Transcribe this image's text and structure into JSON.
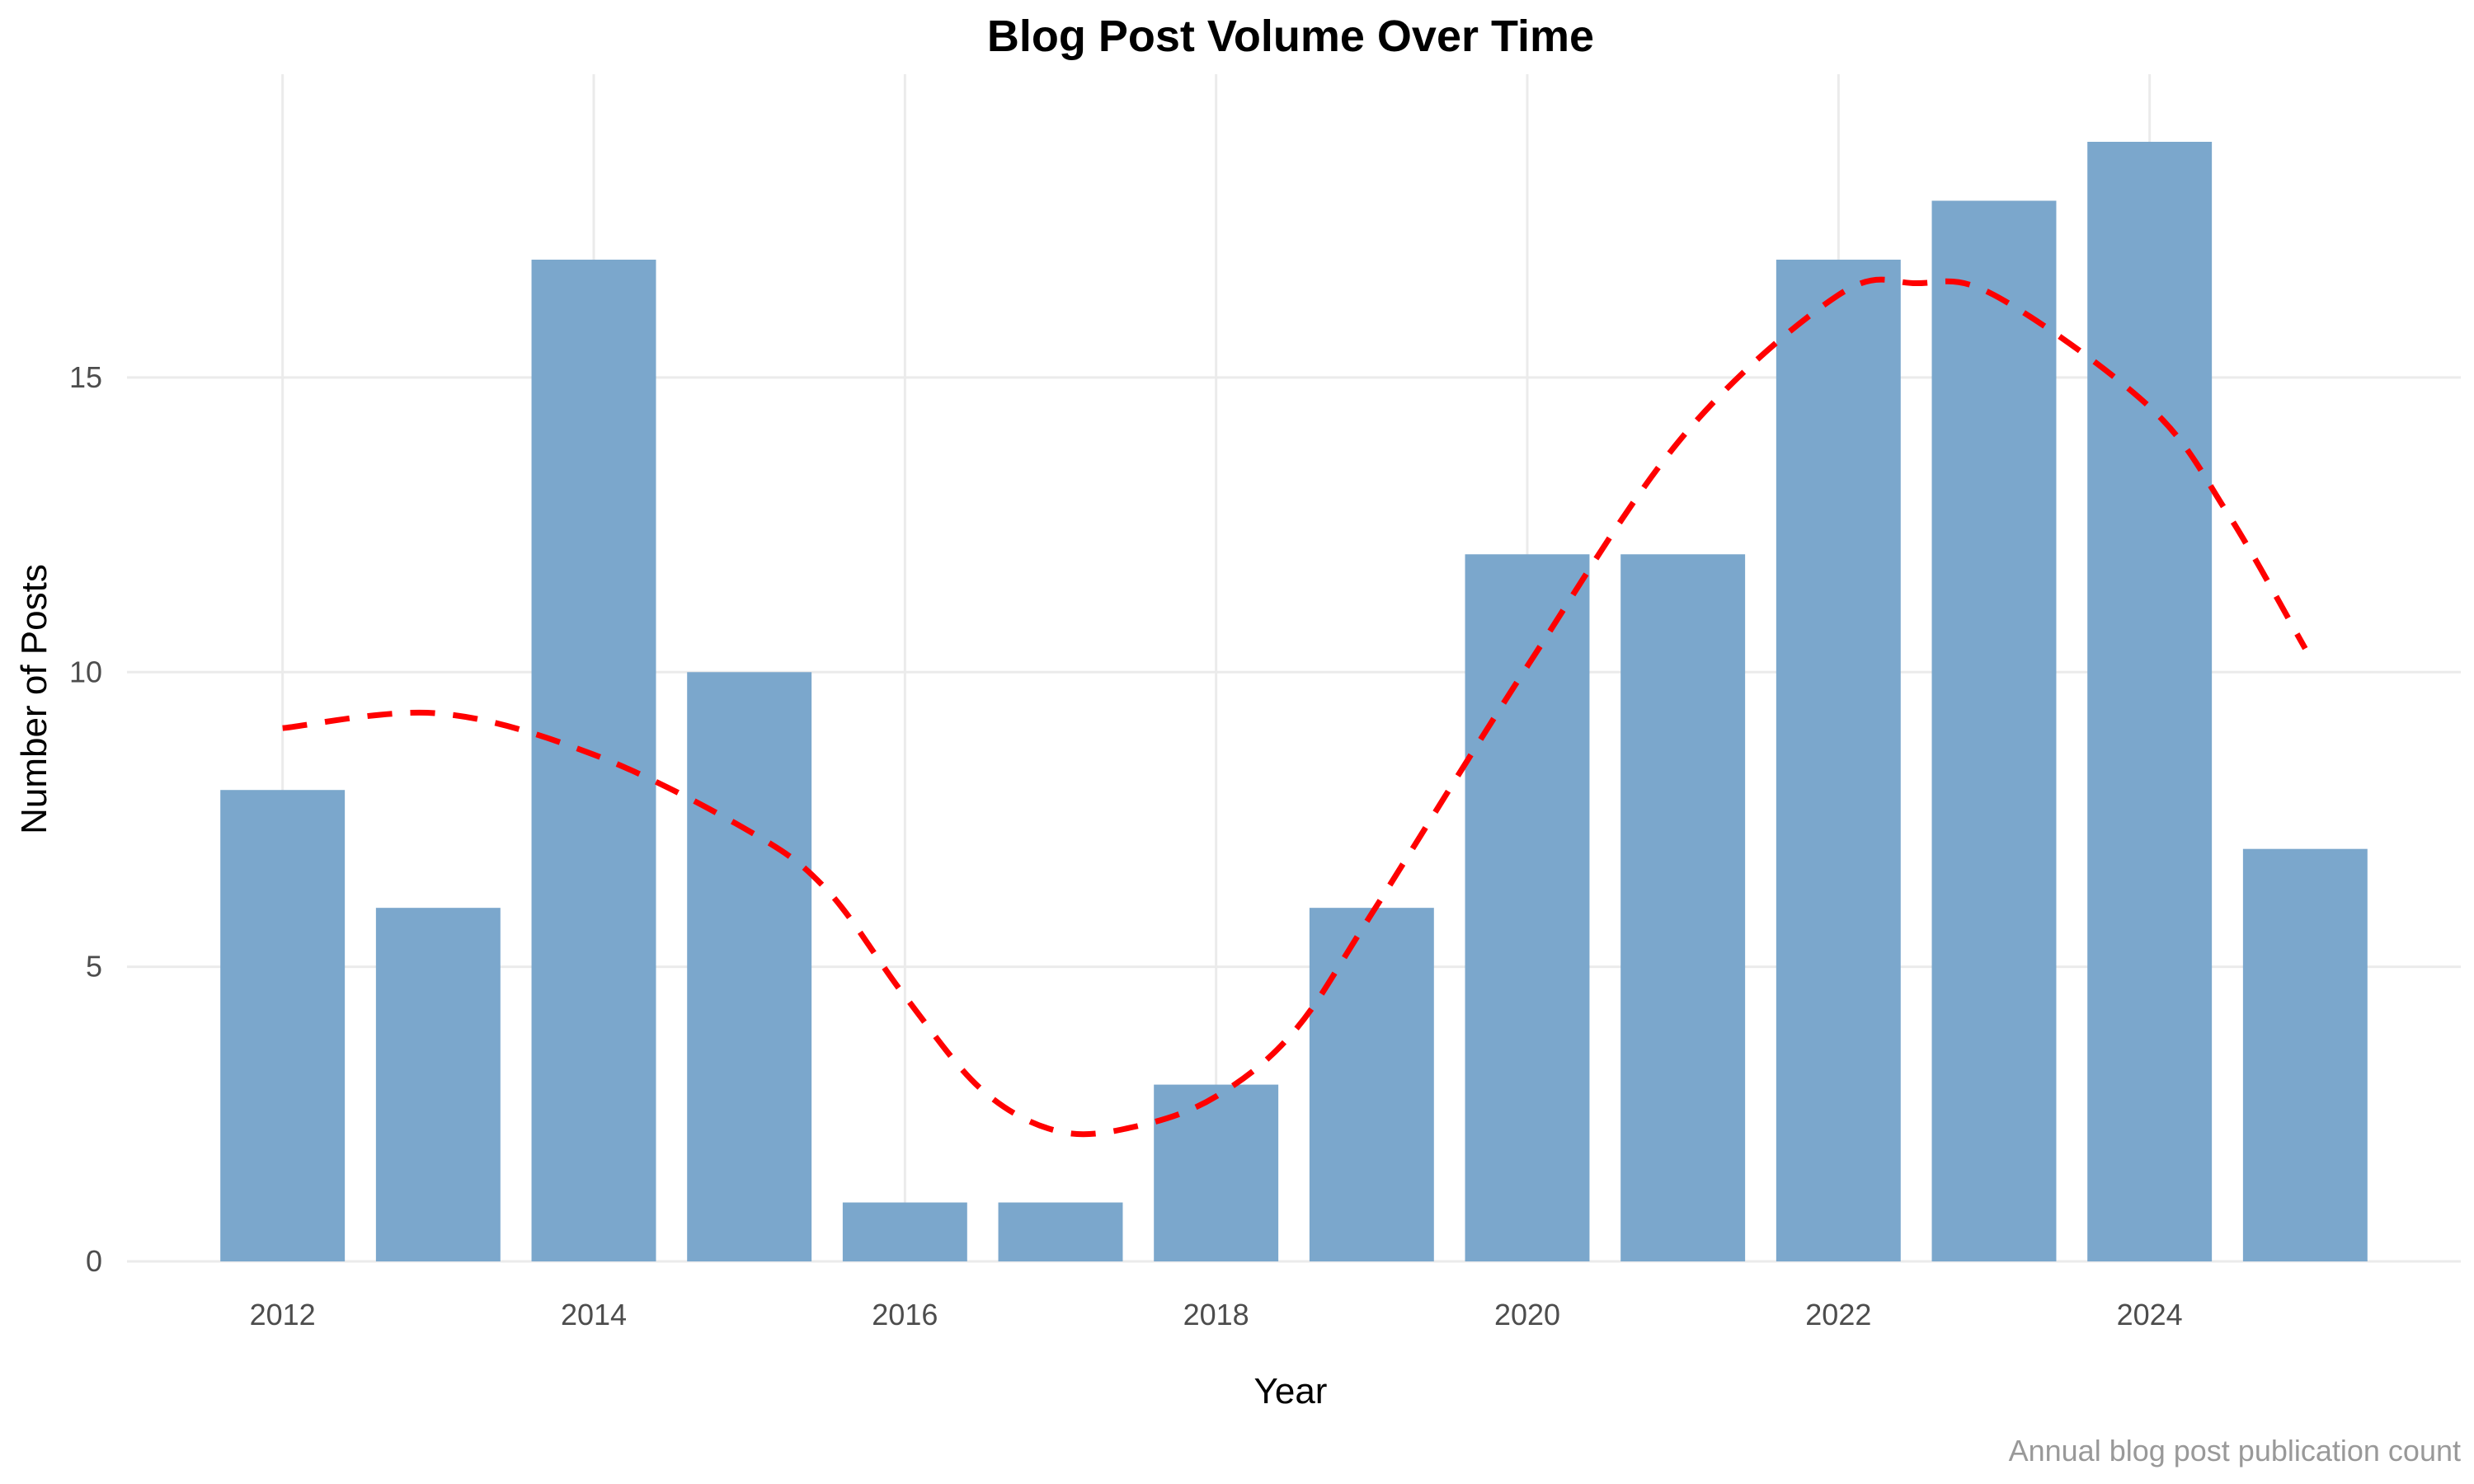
{
  "chart_data": {
    "type": "bar",
    "title": "Blog Post Volume Over Time",
    "xlabel": "Year",
    "ylabel": "Number of Posts",
    "caption": "Annual blog post publication count",
    "categories": [
      2012,
      2013,
      2014,
      2015,
      2016,
      2017,
      2018,
      2019,
      2020,
      2021,
      2022,
      2023,
      2024,
      2025
    ],
    "values": [
      8,
      6,
      17,
      10,
      1,
      1,
      3,
      6,
      12,
      12,
      17,
      18,
      19,
      7
    ],
    "bar_color": "#7ba7cc",
    "xlim": [
      2011,
      2026
    ],
    "ylim": [
      0,
      19
    ],
    "x_ticks": [
      "2012",
      "2014",
      "2016",
      "2018",
      "2020",
      "2022",
      "2024"
    ],
    "y_ticks": [
      "0",
      "5",
      "10",
      "15"
    ],
    "grid": true,
    "legend": "none",
    "trend_line": {
      "style": "dashed",
      "color": "#ff0000",
      "x": [
        2012,
        2013,
        2014,
        2015,
        2015.5,
        2016,
        2016.5,
        2017,
        2017.5,
        2018,
        2018.5,
        2019,
        2020,
        2021,
        2022,
        2022.5,
        2023,
        2024,
        2024.5,
        2025
      ],
      "y": [
        9.05,
        9.3,
        8.6,
        7.3,
        6.3,
        4.5,
        2.9,
        2.2,
        2.3,
        2.8,
        3.9,
        5.9,
        10.1,
        14.0,
        16.4,
        16.6,
        16.4,
        14.5,
        12.7,
        10.4
      ]
    }
  }
}
